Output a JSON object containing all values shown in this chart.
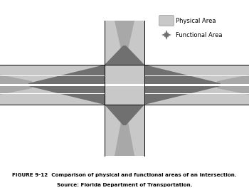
{
  "fig_width": 3.5,
  "fig_height": 2.74,
  "dpi": 100,
  "bg_color": "#ffffff",
  "physical_color": "#c8c8c8",
  "functional_color": "#707070",
  "functional_color2": "#a8a8a8",
  "road_line_color": "#000000",
  "caption_line1": "FIGURE 9-12  Comparison of physical and functional areas of an intersection.",
  "caption_line2": "Source: Florida Department of Transportation.",
  "legend_physical_label": "Physical Area",
  "legend_functional_label": "Functional Area",
  "caption_fontsize": 5.2,
  "legend_fontsize": 6.0
}
